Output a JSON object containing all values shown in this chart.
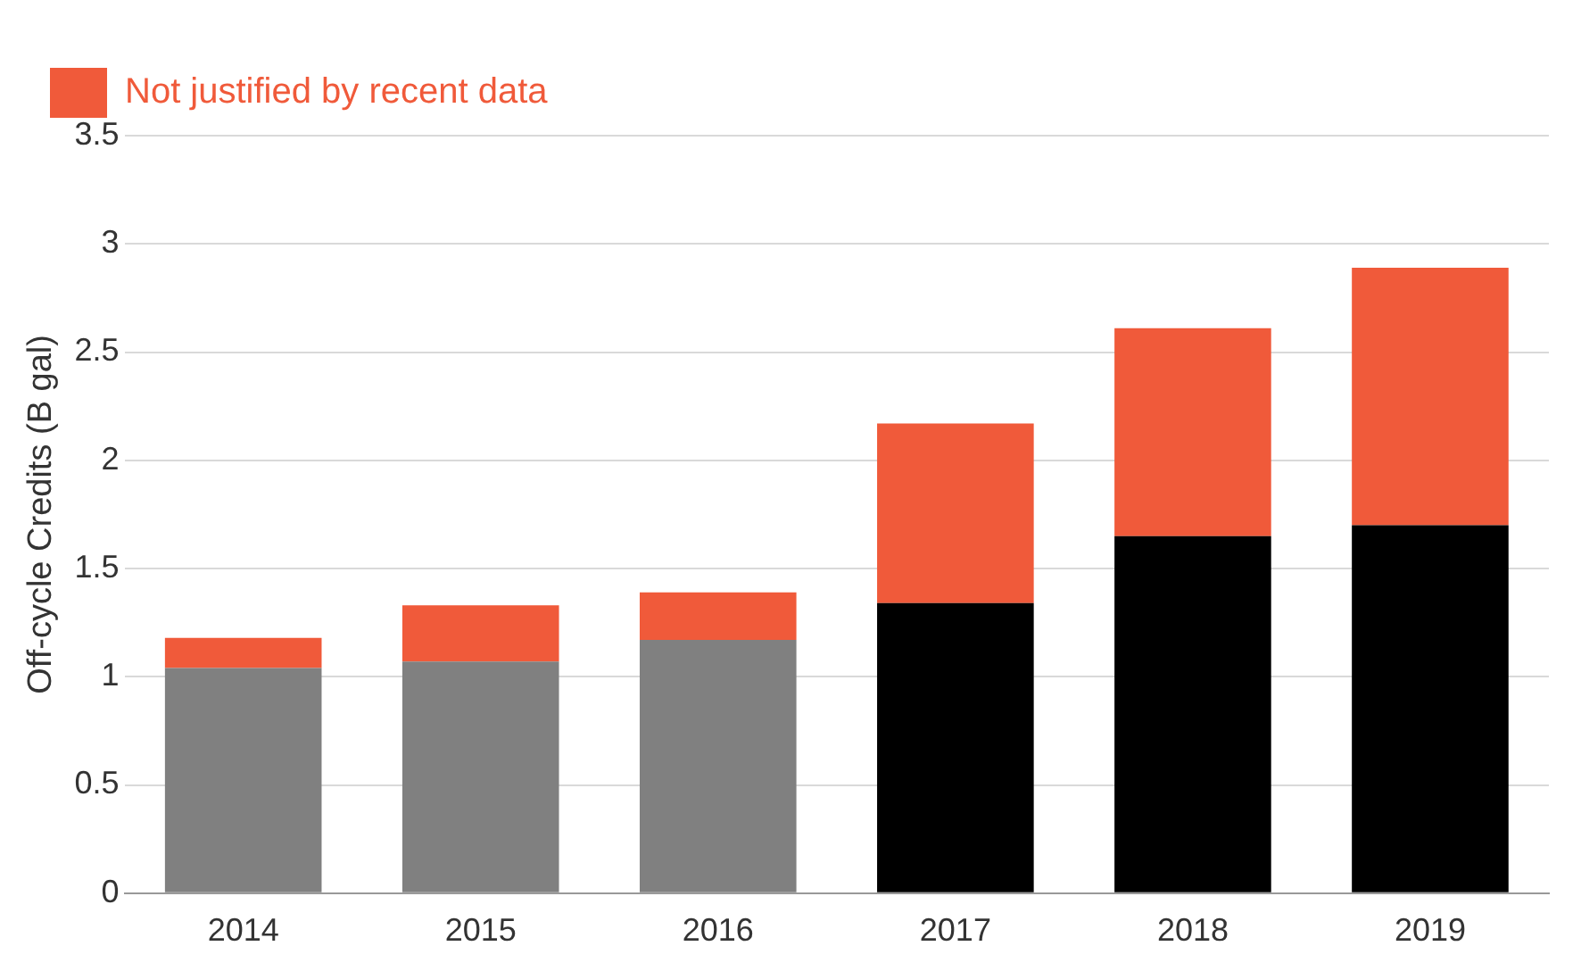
{
  "chart_data": {
    "type": "bar",
    "stacked": true,
    "ylabel": "Off-cycle Credits (B gal)",
    "categories": [
      "2014",
      "2015",
      "2016",
      "2017",
      "2018",
      "2019"
    ],
    "series": [
      {
        "colors": [
          "#808080",
          "#808080",
          "#808080",
          "#000000",
          "#000000",
          "#000000"
        ],
        "values": [
          1.04,
          1.07,
          1.17,
          1.34,
          1.65,
          1.7
        ]
      },
      {
        "name": "Not justified by recent data",
        "color": "#f05a3a",
        "values": [
          0.14,
          0.26,
          0.22,
          0.83,
          0.96,
          1.19
        ]
      }
    ],
    "ylim": [
      0,
      3.5
    ],
    "yticks": [
      0,
      0.5,
      1,
      1.5,
      2,
      2.5,
      3,
      3.5
    ],
    "grid": "y",
    "legend": "top left"
  }
}
